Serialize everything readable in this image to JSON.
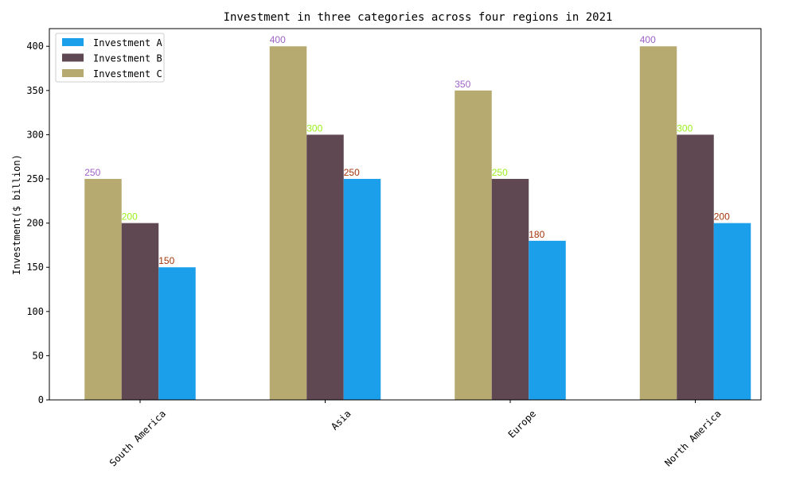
{
  "chart_data": {
    "type": "bar",
    "title": "Investment in three categories across four regions in 2021",
    "xlabel": "",
    "ylabel": "Investment($ billion)",
    "categories": [
      "South America",
      "Asia",
      "Europe",
      "North America"
    ],
    "ylim": [
      0,
      420
    ],
    "yticks": [
      0,
      50,
      100,
      150,
      200,
      250,
      300,
      350,
      400
    ],
    "grid": false,
    "legend_position": "top-left",
    "series": [
      {
        "name": "Investment A",
        "values": [
          150,
          250,
          180,
          200
        ],
        "color": "#1b9fea",
        "label_color": "#a3350a"
      },
      {
        "name": "Investment B",
        "values": [
          200,
          300,
          250,
          300
        ],
        "color": "#5f4852",
        "label_color": "#9af01b"
      },
      {
        "name": "Investment C",
        "values": [
          250,
          400,
          350,
          400
        ],
        "color": "#b6aa70",
        "label_color": "#a062c9"
      }
    ],
    "draw_order": [
      "Investment C",
      "Investment B",
      "Investment A"
    ]
  }
}
